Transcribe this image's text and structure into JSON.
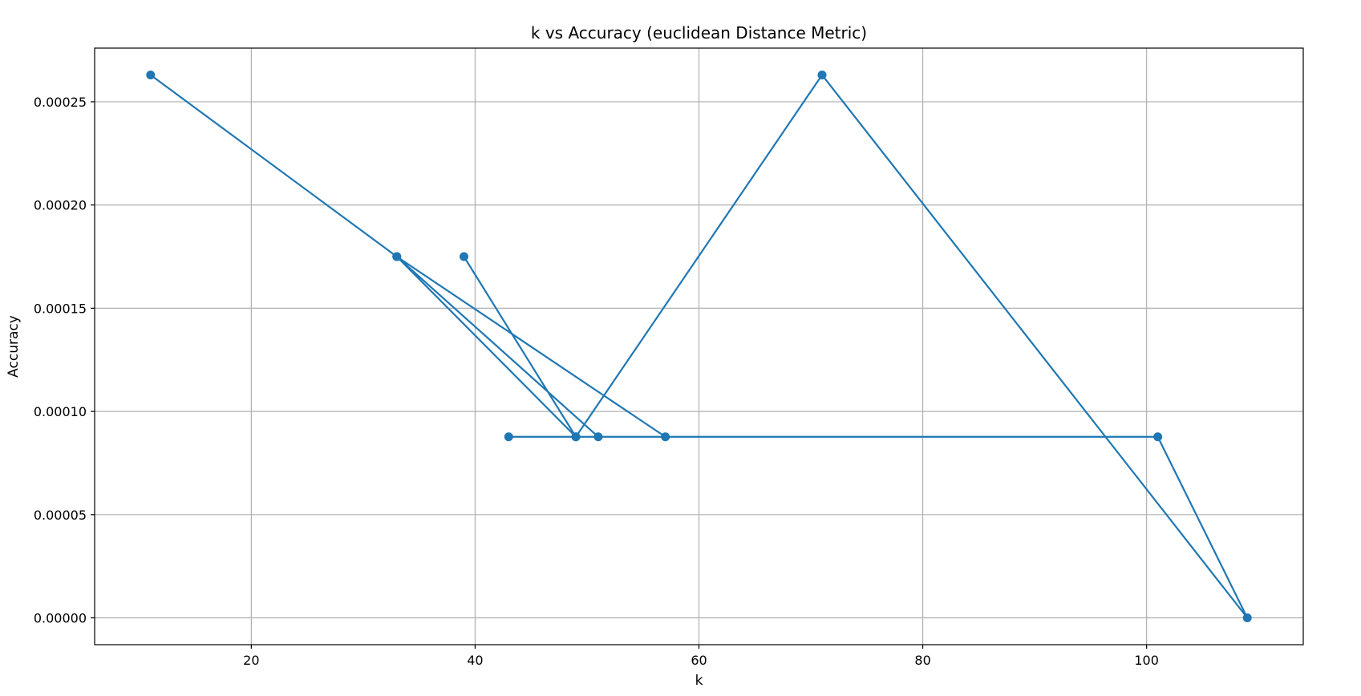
{
  "chart_data": {
    "type": "line",
    "title": "k vs Accuracy (euclidean Distance Metric)",
    "xlabel": "k",
    "ylabel": "Accuracy",
    "xlim": [
      6,
      114
    ],
    "ylim": [
      -1.3e-05,
      0.000276
    ],
    "xticks": [
      20,
      40,
      60,
      80,
      100
    ],
    "xtick_labels": [
      "20",
      "40",
      "60",
      "80",
      "100"
    ],
    "yticks": [
      0.0,
      5e-05,
      0.0001,
      0.00015,
      0.0002,
      0.00025
    ],
    "ytick_labels": [
      "0.00000",
      "0.00005",
      "0.00010",
      "0.00015",
      "0.00020",
      "0.00025"
    ],
    "grid": true,
    "series": [
      {
        "color": "#1f77b4",
        "marker": "circle",
        "x": [
          11,
          33,
          51,
          43,
          101,
          109,
          71,
          49,
          39,
          49,
          33,
          57
        ],
        "y": [
          0.000263,
          0.000175,
          8.77e-05,
          8.77e-05,
          8.77e-05,
          0.0,
          0.000263,
          8.77e-05,
          0.000175,
          8.77e-05,
          0.000175,
          8.77e-05
        ]
      }
    ]
  }
}
